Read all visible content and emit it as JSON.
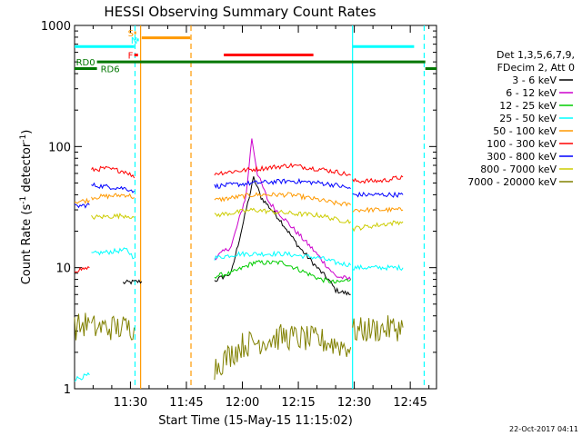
{
  "chart_data": {
    "type": "line",
    "title": "HESSI Observing Summary Count Rates",
    "xlabel": "Start Time (15-May-15 11:15:02)",
    "ylabel_parts": [
      "Count Rate (s",
      "-1",
      " detector",
      "-1",
      ")"
    ],
    "yscale": "log",
    "ylim": [
      1,
      1000
    ],
    "xlim_minutes": [
      0,
      97
    ],
    "x_tick_labels": [
      "11:30",
      "11:45",
      "12:00",
      "12:15",
      "12:30",
      "12:45"
    ],
    "y_tick_labels": [
      "1",
      "10",
      "100",
      "1000"
    ],
    "legend_header": [
      "Det 1,3,5,6,7,9,",
      "FDecim 2, Att 0"
    ],
    "grid": false,
    "legend_position": "right",
    "series": [
      {
        "name": "3 - 6 keV",
        "color": "#000000",
        "segments": [
          [
            [
              13,
              7.5
            ],
            [
              18,
              7.7
            ]
          ],
          [
            [
              37.5,
              7.8
            ],
            [
              42,
              9
            ],
            [
              46,
              30
            ],
            [
              48,
              55
            ],
            [
              50,
              38
            ],
            [
              55,
              25
            ],
            [
              60,
              15
            ],
            [
              65,
              10
            ],
            [
              68,
              8
            ],
            [
              70,
              6.5
            ],
            [
              74,
              6
            ]
          ]
        ]
      },
      {
        "name": "6 - 12 keV",
        "color": "#cc00cc",
        "segments": [
          [
            [
              37.5,
              12
            ],
            [
              42,
              15
            ],
            [
              46,
              40
            ],
            [
              47.5,
              118
            ],
            [
              49,
              60
            ],
            [
              52,
              35
            ],
            [
              58,
              22
            ],
            [
              64,
              14
            ],
            [
              68,
              10
            ],
            [
              70,
              8.5
            ],
            [
              74,
              8
            ]
          ]
        ]
      },
      {
        "name": "12 - 25 keV",
        "color": "#00cc00",
        "segments": [
          [
            [
              37.5,
              8.5
            ],
            [
              42,
              9
            ],
            [
              48,
              11
            ],
            [
              56,
              11
            ],
            [
              66,
              8
            ],
            [
              70,
              7.5
            ],
            [
              74,
              8
            ]
          ]
        ]
      },
      {
        "name": "25 - 50 keV",
        "color": "#00ffff",
        "segments": [
          [
            [
              0,
              1.2
            ],
            [
              4,
              1.3
            ]
          ],
          [
            [
              4.5,
              13
            ],
            [
              14,
              14
            ],
            [
              16,
              12
            ]
          ],
          [
            [
              37.5,
              12
            ],
            [
              44,
              13
            ],
            [
              56,
              13
            ],
            [
              66,
              12
            ],
            [
              70,
              11
            ],
            [
              74,
              10.5
            ]
          ],
          [
            [
              74.5,
              10
            ],
            [
              88,
              10
            ]
          ]
        ]
      },
      {
        "name": "50 - 100 keV",
        "color": "#ff9900",
        "segments": [
          [
            [
              0,
              35
            ],
            [
              4,
              36
            ]
          ],
          [
            [
              4.5,
              38
            ],
            [
              14,
              40
            ],
            [
              16,
              38
            ]
          ],
          [
            [
              37.5,
              36
            ],
            [
              48,
              40
            ],
            [
              58,
              40
            ],
            [
              66,
              36
            ],
            [
              70,
              34
            ],
            [
              74,
              33
            ]
          ],
          [
            [
              74.5,
              30
            ],
            [
              88,
              30
            ]
          ]
        ]
      },
      {
        "name": "100 - 300 keV",
        "color": "#ff0000",
        "segments": [
          [
            [
              0,
              9.5
            ],
            [
              4,
              10
            ]
          ],
          [
            [
              4.5,
              64
            ],
            [
              8,
              66
            ],
            [
              14,
              62
            ],
            [
              16,
              55
            ]
          ],
          [
            [
              37.5,
              60
            ],
            [
              48,
              65
            ],
            [
              58,
              70
            ],
            [
              66,
              65
            ],
            [
              70,
              62
            ],
            [
              74,
              58
            ]
          ],
          [
            [
              74.5,
              52
            ],
            [
              82,
              52
            ],
            [
              88,
              56
            ]
          ]
        ]
      },
      {
        "name": "300 - 800 keV",
        "color": "#0000ff",
        "segments": [
          [
            [
              0,
              32
            ],
            [
              4,
              33
            ]
          ],
          [
            [
              4.5,
              48
            ],
            [
              14,
              45
            ],
            [
              16,
              43
            ]
          ],
          [
            [
              37.5,
              47
            ],
            [
              48,
              50
            ],
            [
              58,
              52
            ],
            [
              66,
              50
            ],
            [
              70,
              48
            ],
            [
              74,
              45
            ]
          ],
          [
            [
              74.5,
              40
            ],
            [
              88,
              40
            ]
          ]
        ]
      },
      {
        "name": "800 - 7000 keV",
        "color": "#cccc00",
        "segments": [
          [
            [
              4.5,
              26
            ],
            [
              14,
              27
            ],
            [
              16,
              26
            ]
          ],
          [
            [
              37.5,
              27
            ],
            [
              48,
              30
            ],
            [
              58,
              28
            ],
            [
              66,
              27
            ],
            [
              70,
              25
            ],
            [
              74,
              24
            ]
          ],
          [
            [
              74.5,
              21
            ],
            [
              88,
              24
            ]
          ]
        ]
      },
      {
        "name": "7000 - 20000 keV",
        "color": "#808000",
        "segments": [
          [
            [
              0,
              3.2
            ],
            [
              4,
              3.5
            ]
          ],
          [
            [
              4.5,
              3.2
            ],
            [
              16,
              3.2
            ]
          ],
          [
            [
              37.5,
              1.5
            ],
            [
              45,
              2.3
            ],
            [
              56,
              2.7
            ],
            [
              66,
              2.5
            ],
            [
              74,
              2.2
            ]
          ],
          [
            [
              74.5,
              3
            ],
            [
              88,
              3.2
            ]
          ]
        ]
      }
    ],
    "flag_bars": [
      {
        "label": "S",
        "color": "#ff9900",
        "start": 16,
        "end": 16.5,
        "level": 870
      },
      {
        "label": "N",
        "color": "#00ffff",
        "start": 16.8,
        "end": 17.2,
        "level": 760
      },
      {
        "label": "",
        "color": "#ff9900",
        "start": 18,
        "end": 31,
        "level": 790
      },
      {
        "label": "F",
        "color": "#ff0000",
        "start": 16,
        "end": 17,
        "level": 570
      },
      {
        "label": "",
        "color": "#ff0000",
        "start": 40,
        "end": 64,
        "level": 570
      },
      {
        "label": "",
        "color": "#00ffff",
        "start": 0,
        "end": 16,
        "level": 670
      },
      {
        "label": "",
        "color": "#00ffff",
        "start": 74.5,
        "end": 91,
        "level": 670
      },
      {
        "label": "RD0",
        "color": "#007700",
        "start": 6,
        "end": 94,
        "level": 500
      },
      {
        "label": "RD6",
        "color": "#007700",
        "start": 0,
        "end": 6,
        "level": 440
      },
      {
        "label": "",
        "color": "#007700",
        "start": 94,
        "end": 97,
        "level": 440
      }
    ],
    "vertical_lines": [
      {
        "x": 16.2,
        "color": "#00ffff",
        "style": "dashed"
      },
      {
        "x": 17.7,
        "color": "#ff9900",
        "style": "solid"
      },
      {
        "x": 31.2,
        "color": "#ff9900",
        "style": "dashed"
      },
      {
        "x": 74.5,
        "color": "#00ffff",
        "style": "solid"
      },
      {
        "x": 93.7,
        "color": "#00ffff",
        "style": "dashed"
      }
    ]
  },
  "footer": {
    "date": "22-Oct-2017 04:11"
  }
}
